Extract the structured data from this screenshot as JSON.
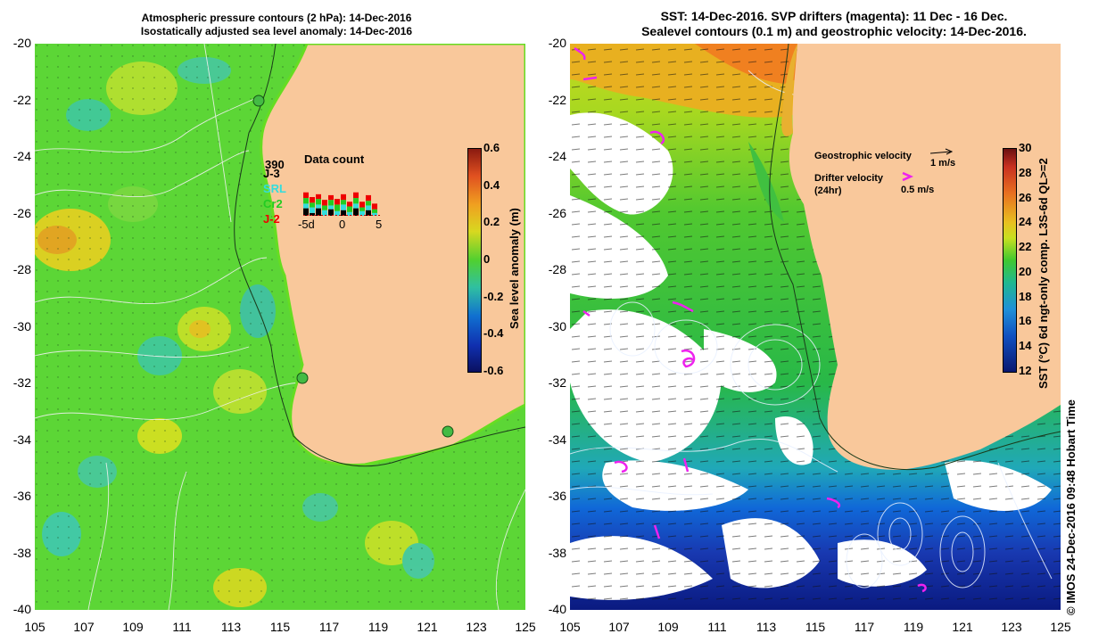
{
  "left_panel": {
    "title_line1": "Atmospheric pressure contours (2 hPa): 14-Dec-2016",
    "title_line2": "Isostatically adjusted sea level anomaly: 14-Dec-2016",
    "colorbar_label": "Sea level anomaly (m)",
    "colorbar_ticks": [
      "0.6",
      "0.4",
      "0.2",
      "0",
      "-0.2",
      "-0.4",
      "-0.6"
    ],
    "data_count": {
      "title": "Data count",
      "max_label": "390",
      "legend": [
        {
          "label": "J-3",
          "color": "#000000"
        },
        {
          "label": "SRL",
          "color": "#33dddd"
        },
        {
          "label": "Cr2",
          "color": "#22cc22"
        },
        {
          "label": "J-2",
          "color": "#ee0000"
        }
      ],
      "x_ticks": [
        "-5d",
        "0",
        "5"
      ]
    }
  },
  "right_panel": {
    "title_line1": "SST: 14-Dec-2016. SVP drifters (magenta): 11 Dec - 16 Dec.",
    "title_line2": "Sealevel contours (0.1 m) and geostrophic velocity: 14-Dec-2016.",
    "geo_label": "Geostrophic velocity",
    "geo_scale": "1 m/s",
    "drifter_label1": "Drifter velocity",
    "drifter_label2": "(24hr)",
    "drifter_scale": "0.5 m/s",
    "colorbar_label": "SST (°C) 6d ngt-only comp. L3S-6d QL>=2",
    "colorbar_ticks": [
      "30",
      "28",
      "26",
      "24",
      "22",
      "20",
      "18",
      "16",
      "14",
      "12"
    ]
  },
  "credit": "© IMOS 24-Dec-2016 09:48 Hobart Time",
  "axes": {
    "y_ticks": [
      "-20",
      "-22",
      "-24",
      "-26",
      "-28",
      "-30",
      "-32",
      "-34",
      "-36",
      "-38",
      "-40"
    ],
    "x_ticks": [
      "105",
      "107",
      "109",
      "111",
      "113",
      "115",
      "117",
      "119",
      "121",
      "123",
      "125"
    ]
  },
  "colors": {
    "land": "#f9c89b",
    "ocean_anomaly": "#55d633",
    "sst_warm": "#e8a020",
    "sst_mid": "#20c040",
    "sst_cold": "#0a2a9a"
  }
}
